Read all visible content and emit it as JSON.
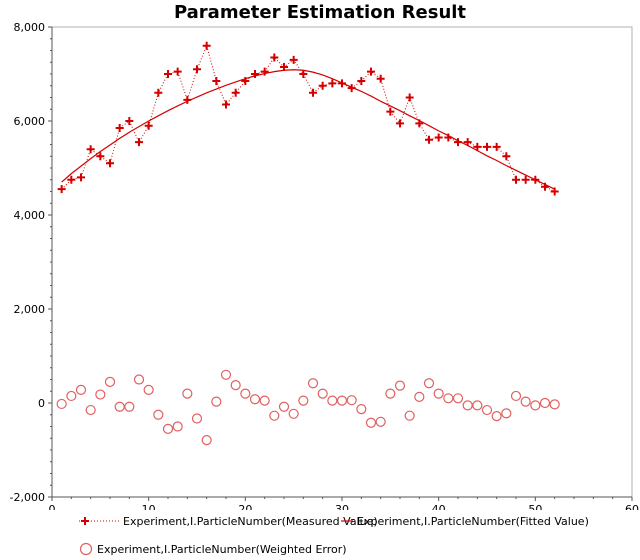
{
  "chart_data": {
    "type": "scatter",
    "title": "Parameter Estimation Result",
    "xlabel": "",
    "ylabel": "",
    "xlim": [
      0,
      60
    ],
    "ylim": [
      -2000,
      8000
    ],
    "x_ticks": [
      0,
      10,
      20,
      30,
      40,
      50,
      60
    ],
    "y_ticks": [
      -2000,
      0,
      2000,
      4000,
      6000,
      8000
    ],
    "x_tick_labels": [
      "0",
      "10",
      "20",
      "30",
      "40",
      "50",
      "60"
    ],
    "y_tick_labels": [
      "-2,000",
      "0",
      "2,000",
      "4,000",
      "6,000",
      "8,000"
    ],
    "grid": false,
    "legend_position": "bottom",
    "x": [
      1,
      2,
      3,
      4,
      5,
      6,
      7,
      8,
      9,
      10,
      11,
      12,
      13,
      14,
      15,
      16,
      17,
      18,
      19,
      20,
      21,
      22,
      23,
      24,
      25,
      26,
      27,
      28,
      29,
      30,
      31,
      32,
      33,
      34,
      35,
      36,
      37,
      38,
      39,
      40,
      41,
      42,
      43,
      44,
      45,
      46,
      47,
      48,
      49,
      50,
      51,
      52
    ],
    "series": [
      {
        "name": "Experiment,I.ParticleNumber(Measured Value)",
        "style": "plus-dotted",
        "color": "#d40000",
        "values": [
          4550,
          4750,
          4800,
          5400,
          5250,
          5100,
          5850,
          6000,
          5550,
          5900,
          6600,
          7000,
          7050,
          6450,
          7100,
          7600,
          6850,
          6350,
          6600,
          6850,
          7000,
          7050,
          7350,
          7150,
          7300,
          7000,
          6600,
          6750,
          6800,
          6800,
          6700,
          6850,
          7050,
          6900,
          6200,
          5950,
          6500,
          5950,
          5600,
          5650,
          5650,
          5550,
          5550,
          5450,
          5450,
          5450,
          5250,
          4750,
          4750,
          4750,
          4600,
          4500
        ]
      },
      {
        "name": "Experiment,I.ParticleNumber(Fitted Value)",
        "style": "line",
        "color": "#d40000",
        "values": [
          4700,
          4880,
          5040,
          5200,
          5350,
          5490,
          5630,
          5760,
          5880,
          6000,
          6110,
          6220,
          6320,
          6420,
          6510,
          6600,
          6680,
          6760,
          6830,
          6900,
          6960,
          7010,
          7050,
          7080,
          7090,
          7080,
          7040,
          6980,
          6900,
          6810,
          6720,
          6630,
          6530,
          6420,
          6320,
          6220,
          6110,
          6010,
          5900,
          5790,
          5690,
          5580,
          5480,
          5370,
          5260,
          5160,
          5050,
          4950,
          4850,
          4750,
          4650,
          4550
        ]
      },
      {
        "name": "Experiment,I.ParticleNumber(Weighted Error)",
        "style": "circle",
        "color": "#e06060",
        "values": [
          -20,
          150,
          280,
          -150,
          180,
          450,
          -80,
          -80,
          500,
          280,
          -250,
          -550,
          -500,
          200,
          -330,
          -790,
          30,
          600,
          380,
          200,
          80,
          50,
          -270,
          -80,
          -230,
          50,
          420,
          200,
          50,
          50,
          60,
          -130,
          -420,
          -400,
          200,
          370,
          -270,
          130,
          420,
          200,
          100,
          100,
          -50,
          -50,
          -150,
          -280,
          -220,
          150,
          30,
          -50,
          0,
          -30
        ]
      }
    ]
  },
  "legend": {
    "items": [
      {
        "label": "Experiment,I.ParticleNumber(Measured Value)"
      },
      {
        "label": "Experiment,I.ParticleNumber(Fitted Value)"
      },
      {
        "label": "Experiment,I.ParticleNumber(Weighted Error)"
      }
    ]
  }
}
